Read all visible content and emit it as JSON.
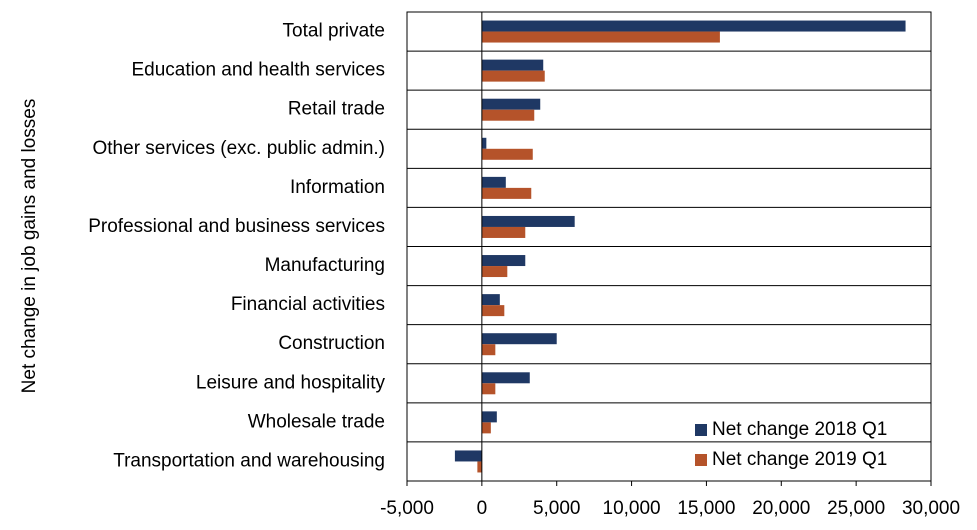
{
  "chart_data": {
    "type": "hbar",
    "y_label": "Net change in job gains and losses",
    "categories": [
      "Total private",
      "Education and health services",
      "Retail trade",
      "Other services (exc. public admin.)",
      "Information",
      "Professional and business services",
      "Manufacturing",
      "Financial activities",
      "Construction",
      "Leisure and hospitality",
      "Wholesale trade",
      "Transportation and warehousing"
    ],
    "series": [
      {
        "name": "Net change 2018 Q1",
        "color": "#1f3864",
        "values": [
          28300,
          4100,
          3900,
          300,
          1600,
          6200,
          2900,
          1200,
          5000,
          3200,
          1000,
          -1800
        ]
      },
      {
        "name": "Net change 2019 Q1",
        "color": "#b5532a",
        "values": [
          15900,
          4200,
          3500,
          3400,
          3300,
          2900,
          1700,
          1500,
          900,
          900,
          600,
          -300
        ]
      }
    ],
    "xlim": [
      -5000,
      30000
    ],
    "xticks": [
      {
        "value": -5000,
        "label": "-5,000"
      },
      0,
      {
        "value": 5000,
        "label": "5,000"
      },
      {
        "value": 10000,
        "label": "10,000"
      },
      {
        "value": 15000,
        "label": "15,000"
      },
      {
        "value": 20000,
        "label": "20,000"
      },
      {
        "value": 25000,
        "label": "25,000"
      },
      {
        "value": 30000,
        "label": "30,000"
      }
    ],
    "legend": "lower right"
  }
}
